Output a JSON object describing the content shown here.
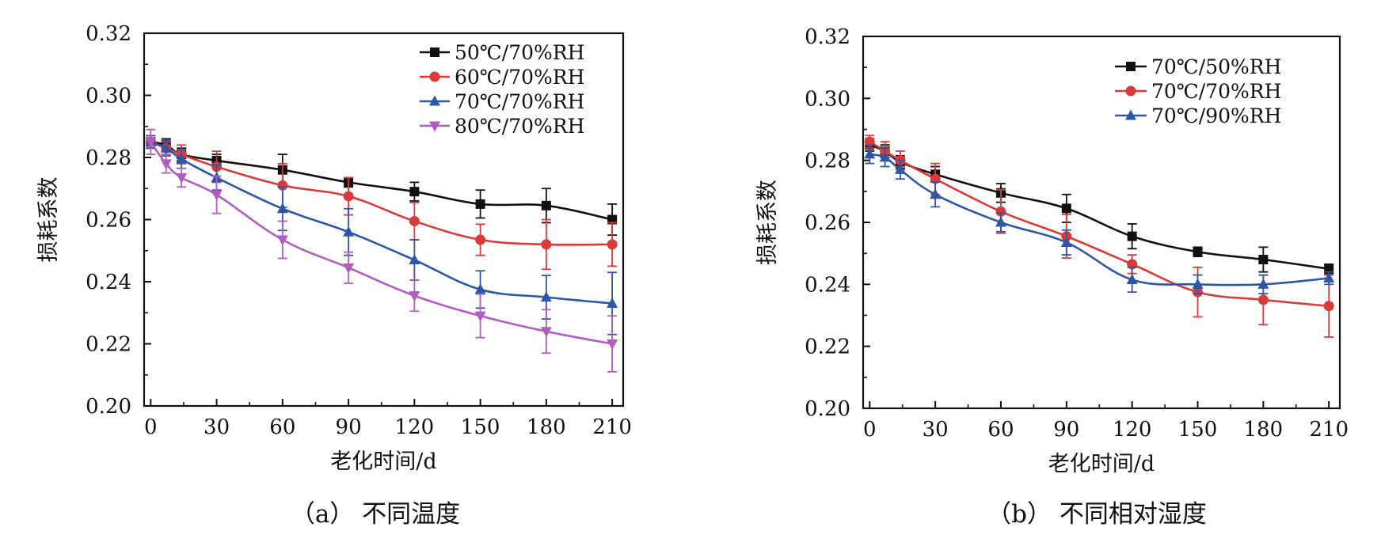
{
  "chart_data": [
    {
      "type": "line",
      "caption": "（a） 不同温度",
      "xlabel": "老化时间/d",
      "ylabel": "损耗系数",
      "xlim": [
        -3,
        215
      ],
      "ylim": [
        0.2,
        0.32
      ],
      "xticks": [
        "0",
        "30",
        "60",
        "90",
        "120",
        "150",
        "180",
        "210"
      ],
      "yticks": [
        "0.20",
        "0.22",
        "0.24",
        "0.26",
        "0.28",
        "0.30",
        "0.32"
      ],
      "grid": false,
      "legend_position": "top-right",
      "x": [
        0,
        7,
        14,
        30,
        60,
        90,
        120,
        150,
        180,
        210
      ],
      "series": [
        {
          "name": "50℃/70%RH",
          "color": "#111111",
          "marker": "square",
          "values": [
            0.285,
            0.284,
            0.281,
            0.279,
            0.276,
            0.272,
            0.269,
            0.265,
            0.2645,
            0.26
          ],
          "errors": [
            0.002,
            0.002,
            0.002,
            0.002,
            0.005,
            0.0015,
            0.003,
            0.0045,
            0.0055,
            0.005
          ]
        },
        {
          "name": "60℃/70%RH",
          "color": "#d93a3a",
          "marker": "circle",
          "values": [
            0.285,
            0.283,
            0.281,
            0.277,
            0.271,
            0.2675,
            0.2595,
            0.2535,
            0.252,
            0.252
          ],
          "errors": [
            0.002,
            0.002,
            0.003,
            0.005,
            0.007,
            0.006,
            0.006,
            0.005,
            0.008,
            0.007
          ]
        },
        {
          "name": "70℃/70%RH",
          "color": "#2e56a6",
          "marker": "triangle-up",
          "values": [
            0.285,
            0.283,
            0.2795,
            0.2735,
            0.2635,
            0.256,
            0.247,
            0.2375,
            0.235,
            0.233
          ],
          "errors": [
            0.002,
            0.0025,
            0.003,
            0.004,
            0.007,
            0.0075,
            0.0065,
            0.006,
            0.007,
            0.01
          ]
        },
        {
          "name": "80℃/70%RH",
          "color": "#b05dbf",
          "marker": "triangle-down",
          "values": [
            0.285,
            0.278,
            0.2735,
            0.268,
            0.2535,
            0.2445,
            0.2355,
            0.229,
            0.224,
            0.22
          ],
          "errors": [
            0.004,
            0.003,
            0.003,
            0.006,
            0.006,
            0.005,
            0.005,
            0.007,
            0.007,
            0.009
          ]
        }
      ]
    },
    {
      "type": "line",
      "caption": "（b） 不同相对湿度",
      "xlabel": "老化时间/d",
      "ylabel": "损耗系数",
      "xlim": [
        -3,
        215
      ],
      "ylim": [
        0.2,
        0.32
      ],
      "xticks": [
        "0",
        "30",
        "60",
        "90",
        "120",
        "150",
        "180",
        "210"
      ],
      "yticks": [
        "0.20",
        "0.22",
        "0.24",
        "0.26",
        "0.28",
        "0.30",
        "0.32"
      ],
      "grid": false,
      "legend_position": "top-right",
      "x": [
        0,
        7,
        14,
        30,
        60,
        90,
        120,
        150,
        180,
        210
      ],
      "series": [
        {
          "name": "70℃/50%RH",
          "color": "#111111",
          "marker": "square",
          "values": [
            0.285,
            0.283,
            0.2795,
            0.2755,
            0.2695,
            0.2645,
            0.2555,
            0.2505,
            0.248,
            0.245
          ],
          "errors": [
            0.002,
            0.002,
            0.002,
            0.0025,
            0.003,
            0.0045,
            0.004,
            0.0015,
            0.004,
            0.0015
          ]
        },
        {
          "name": "70℃/70%RH",
          "color": "#d93a3a",
          "marker": "circle",
          "values": [
            0.286,
            0.283,
            0.28,
            0.274,
            0.2635,
            0.2555,
            0.2465,
            0.2375,
            0.235,
            0.233
          ],
          "errors": [
            0.002,
            0.003,
            0.003,
            0.005,
            0.007,
            0.007,
            0.003,
            0.008,
            0.008,
            0.01
          ]
        },
        {
          "name": "70℃/90%RH",
          "color": "#2e56a6",
          "marker": "triangle-up",
          "values": [
            0.282,
            0.281,
            0.277,
            0.269,
            0.26,
            0.2535,
            0.2415,
            0.24,
            0.24,
            0.242
          ],
          "errors": [
            0.003,
            0.003,
            0.003,
            0.004,
            0.003,
            0.004,
            0.004,
            0.003,
            0.003,
            0.002
          ]
        }
      ]
    }
  ]
}
